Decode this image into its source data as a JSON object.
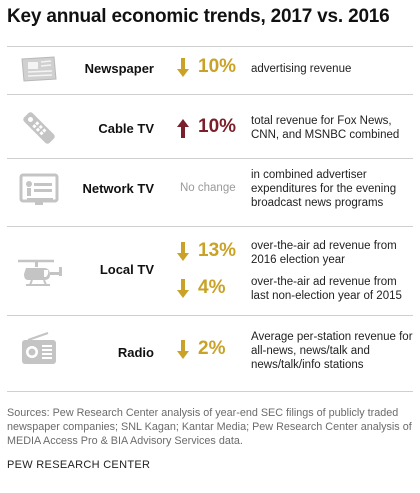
{
  "title": "Key annual economic trends, 2017 vs. 2016",
  "rows": [
    {
      "medium": "Newspaper",
      "icon": "newspaper-icon",
      "direction": "down",
      "change": "10%",
      "description": "advertising revenue"
    },
    {
      "medium": "Cable TV",
      "icon": "remote-control-icon",
      "direction": "up",
      "change": "10%",
      "description": "total revenue for Fox News, CNN, and MSNBC combined"
    },
    {
      "medium": "Network TV",
      "icon": "television-icon",
      "direction": "none",
      "change_text": "No change",
      "description": "in combined advertiser expenditures for the evening broadcast news programs"
    },
    {
      "medium": "Local TV",
      "icon": "helicopter-icon",
      "changes": [
        {
          "direction": "down",
          "change": "13%",
          "description": "over-the-air ad revenue from 2016 election year"
        },
        {
          "direction": "down",
          "change": "4%",
          "description": "over-the-air ad revenue from last non-election year of 2015"
        }
      ]
    },
    {
      "medium": "Radio",
      "icon": "radio-icon",
      "direction": "down",
      "change": "2%",
      "description": "Average per-station revenue for all-news, news/talk and news/talk/info stations"
    }
  ],
  "sources": "Sources: Pew Research Center analysis of year-end SEC filings of publicly traded newspaper companies; SNL Kagan; Kantar Media; Pew Research Center analysis of MEDIA Access Pro & BIA Advisory Services data.",
  "footer": "PEW RESEARCH CENTER",
  "colors": {
    "down": "#c9a227",
    "up": "#7a1f2b",
    "icon": "#c4c4c4",
    "divider": "#cfcfcf"
  }
}
